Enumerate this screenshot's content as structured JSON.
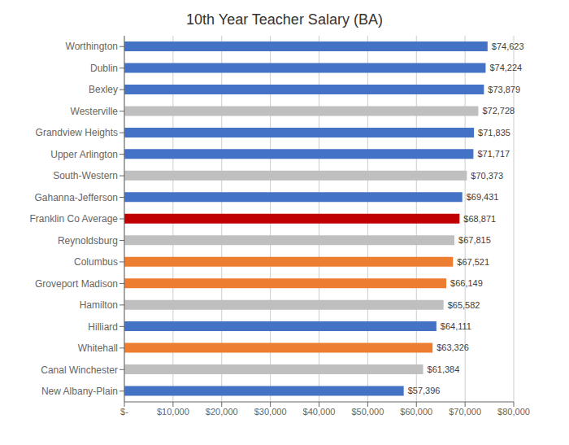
{
  "chart_data": {
    "type": "bar",
    "orientation": "horizontal",
    "title": "10th Year Teacher Salary (BA)",
    "categories": [
      "New Albany-Plain",
      "Canal Winchester",
      "Whitehall",
      "Hilliard",
      "Hamilton",
      "Groveport Madison",
      "Columbus",
      "Reynoldsburg",
      "Franklin Co Average",
      "Gahanna-Jefferson",
      "South-Western",
      "Upper Arlington",
      "Grandview Heights",
      "Westerville",
      "Bexley",
      "Dublin",
      "Worthington"
    ],
    "values": [
      57396,
      61384,
      63326,
      64111,
      65582,
      66149,
      67521,
      67815,
      68871,
      69431,
      70373,
      71717,
      71835,
      72728,
      73879,
      74224,
      74623
    ],
    "value_labels": [
      "$57,396",
      "$61,384",
      "$63,326",
      "$64,111",
      "$65,582",
      "$66,149",
      "$67,521",
      "$67,815",
      "$68,871",
      "$69,431",
      "$70,373",
      "$71,717",
      "$71,835",
      "$72,728",
      "$73,879",
      "$74,224",
      "$74,623"
    ],
    "colors": [
      "#4472C4",
      "#BFBFBF",
      "#ED7D31",
      "#4472C4",
      "#BFBFBF",
      "#ED7D31",
      "#ED7D31",
      "#BFBFBF",
      "#C00000",
      "#4472C4",
      "#BFBFBF",
      "#4472C4",
      "#4472C4",
      "#BFBFBF",
      "#4472C4",
      "#4472C4",
      "#4472C4"
    ],
    "xlim": [
      0,
      80000
    ],
    "xticks": [
      {
        "value": 0,
        "label": "$-"
      },
      {
        "value": 10000,
        "label": "$10,000"
      },
      {
        "value": 20000,
        "label": "$20,000"
      },
      {
        "value": 30000,
        "label": "$30,000"
      },
      {
        "value": 40000,
        "label": "$40,000"
      },
      {
        "value": 50000,
        "label": "$50,000"
      },
      {
        "value": 60000,
        "label": "$60,000"
      },
      {
        "value": 70000,
        "label": "$70,000"
      },
      {
        "value": 80000,
        "label": "$80,000"
      }
    ],
    "grid": true,
    "data_labels": true
  }
}
